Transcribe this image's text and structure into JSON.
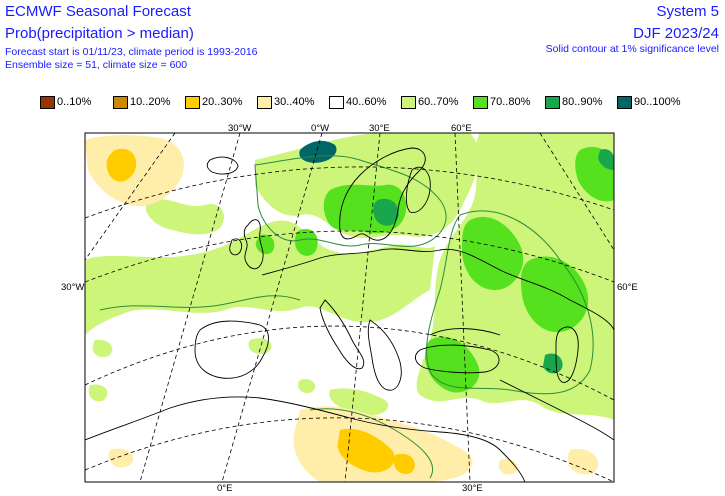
{
  "header": {
    "title": "ECMWF Seasonal Forecast",
    "subtitle": "Prob(precipitation > median)",
    "info_line1": "Forecast start is 01/11/23, climate period is 1993-2016",
    "info_line2": "Ensemble size = 51, climate size = 600",
    "system": "System 5",
    "season": "DJF 2023/24",
    "note": "Solid contour at 1% significance level"
  },
  "legend": [
    {
      "label": "0..10%",
      "color": "#993300"
    },
    {
      "label": "10..20%",
      "color": "#cc8800"
    },
    {
      "label": "20..30%",
      "color": "#ffcc00"
    },
    {
      "label": "30..40%",
      "color": "#ffeeaa"
    },
    {
      "label": "40..60%",
      "color": "#ffffff"
    },
    {
      "label": "60..70%",
      "color": "#ccf57a"
    },
    {
      "label": "70..80%",
      "color": "#55e11e"
    },
    {
      "label": "80..90%",
      "color": "#1aa64d"
    },
    {
      "label": "90..100%",
      "color": "#006666"
    }
  ],
  "grid_labels": {
    "top": [
      "30°W",
      "0°W",
      "30°E",
      "60°E"
    ],
    "left": "30°W",
    "right": "60°E",
    "bottom": [
      "0°E",
      "30°E"
    ]
  },
  "colors": {
    "text_blue": "#1a1aff",
    "coastline": "#000000",
    "significance_contour": "#2e8b3a",
    "gridline": "#000000"
  }
}
